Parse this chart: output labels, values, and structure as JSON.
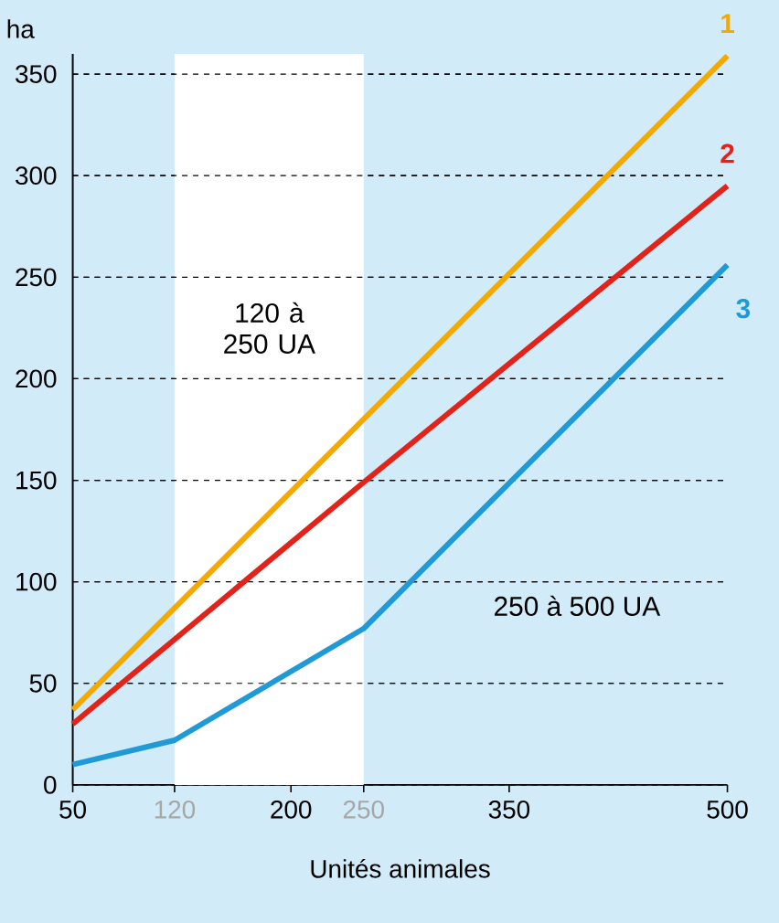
{
  "chart_data": {
    "type": "line",
    "xlabel": "Unités animales",
    "ylabel": "ha",
    "xlim": [
      50,
      500
    ],
    "ylim": [
      0,
      360
    ],
    "xticks": [
      50,
      120,
      200,
      250,
      350,
      500
    ],
    "yticks": [
      0,
      50,
      100,
      150,
      200,
      250,
      300,
      350
    ],
    "grid": "y",
    "legend": false,
    "marker": "none",
    "line_style": "solid",
    "series": [
      {
        "name": "1",
        "color": "#f2a900",
        "x": [
          50,
          500
        ],
        "values": [
          37,
          359
        ]
      },
      {
        "name": "2",
        "color": "#e2231a",
        "x": [
          50,
          250,
          500
        ],
        "values": [
          30,
          149,
          295
        ]
      },
      {
        "name": "3",
        "color": "#1f9ad6",
        "x": [
          50,
          120,
          250,
          500
        ],
        "values": [
          10,
          22,
          77,
          256
        ]
      }
    ],
    "bands": [
      {
        "axis": "x",
        "from": 120,
        "to": 250,
        "label": "120 à 250 UA",
        "color": "#ffffff"
      }
    ],
    "annotations": [
      "250 à 500 UA"
    ]
  }
}
